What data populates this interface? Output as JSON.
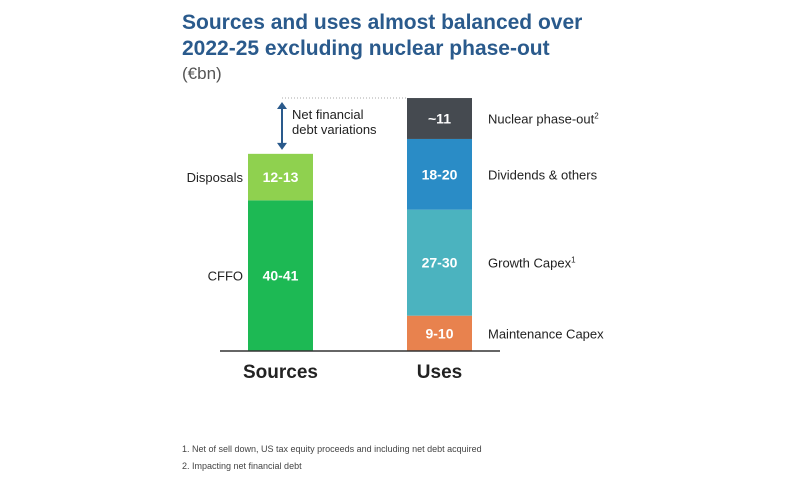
{
  "chart_data": {
    "type": "bar",
    "stacked": true,
    "title": "Sources and uses almost balanced over 2022-25 excluding nuclear phase-out",
    "subtitle": "(€bn)",
    "categories": [
      "Sources",
      "Uses"
    ],
    "series": [
      {
        "category": "Sources",
        "name": "CFFO",
        "label": "40-41",
        "range": [
          40,
          41
        ],
        "color": "#1db954",
        "label_side": "left"
      },
      {
        "category": "Sources",
        "name": "Disposals",
        "label": "12-13",
        "range": [
          12,
          13
        ],
        "color": "#8fd14f",
        "label_side": "left"
      },
      {
        "category": "Uses",
        "name": "Maintenance Capex",
        "label": "9-10",
        "range": [
          9,
          10
        ],
        "color": "#e8824e",
        "label_side": "right"
      },
      {
        "category": "Uses",
        "name": "Growth Capex",
        "sup": "1",
        "label": "27-30",
        "range": [
          27,
          30
        ],
        "color": "#4bb3bf",
        "label_side": "right"
      },
      {
        "category": "Uses",
        "name": "Dividends & others",
        "label": "18-20",
        "range": [
          18,
          20
        ],
        "color": "#2a8cc6",
        "label_side": "right"
      },
      {
        "category": "Uses",
        "name": "Nuclear phase-out",
        "sup": "2",
        "label": "~11",
        "range": [
          11,
          11
        ],
        "color": "#454a50",
        "label_side": "right"
      }
    ],
    "annotation": "Net financial debt variations",
    "annotation_line1": "Net financial",
    "annotation_line2": "debt variations"
  },
  "title_line1": "Sources and uses almost balanced over",
  "title_line2": "2022-25 excluding nuclear phase-out",
  "unit": "(€bn)",
  "footnotes": [
    "1. Net of sell down, US tax equity proceeds and including net debt acquired",
    "2. Impacting net financial debt"
  ]
}
